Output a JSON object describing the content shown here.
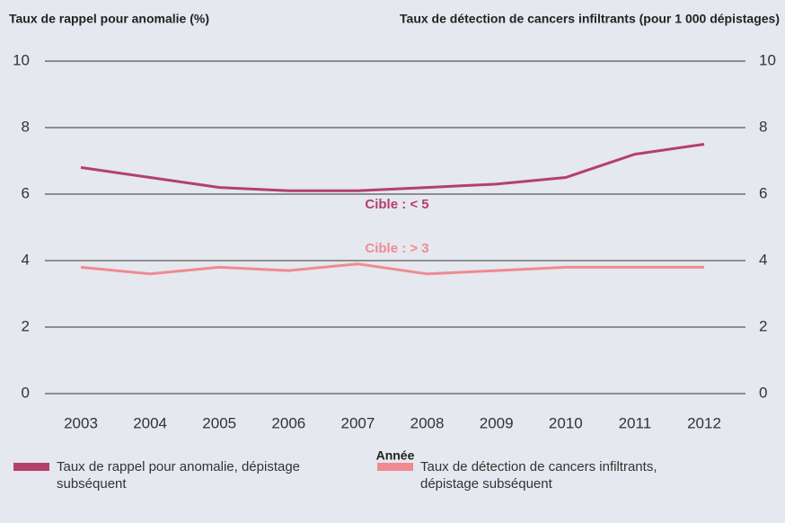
{
  "chart_data": {
    "type": "line",
    "ylabel": "Taux de rappel pour anomalie (%)",
    "y2label": "Taux de détection de cancers infiltrants (pour 1 000 dépistages)",
    "xlabel": "Année",
    "categories": [
      "2003",
      "2004",
      "2005",
      "2006",
      "2007",
      "2008",
      "2009",
      "2010",
      "2011",
      "2012"
    ],
    "series": [
      {
        "name": "Taux de rappel pour anomalie, dépistage subséquent",
        "color": "#b5406a",
        "values": [
          6.8,
          6.5,
          6.2,
          6.1,
          6.1,
          6.2,
          6.3,
          6.5,
          7.2,
          7.5
        ]
      },
      {
        "name": "Taux de détection de cancers infiltrants, dépistage subséquent",
        "color": "#f08a91",
        "axis": "y2",
        "values": [
          3.8,
          3.6,
          3.8,
          3.7,
          3.9,
          3.6,
          3.7,
          3.8,
          3.8,
          3.8
        ]
      }
    ],
    "annotations": [
      {
        "text": "Cible : < 5",
        "color": "#b5406a"
      },
      {
        "text": "Cible : > 3",
        "color": "#f08a91"
      }
    ],
    "ylim": [
      0,
      10
    ],
    "yticks": [
      0,
      2,
      4,
      6,
      8,
      10
    ],
    "y2lim": [
      0,
      10
    ],
    "y2ticks": [
      0,
      2,
      4,
      6,
      8,
      10
    ],
    "grid": true
  }
}
